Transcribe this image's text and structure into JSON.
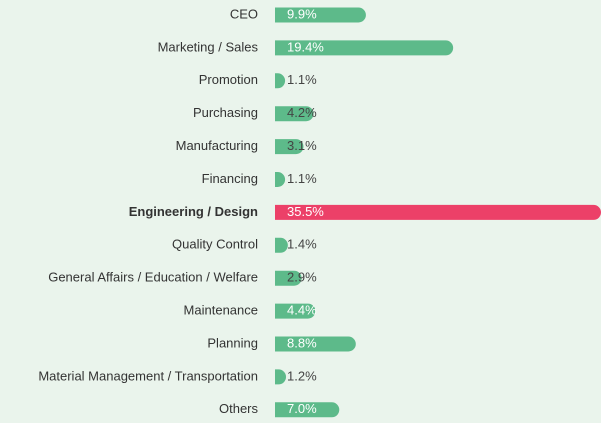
{
  "chart_data": {
    "type": "hbar",
    "categories": [
      "CEO",
      "Marketing / Sales",
      "Promotion",
      "Purchasing",
      "Manufacturing",
      "Financing",
      "Engineering / Design",
      "Quality Control",
      "General Affairs / Education / Welfare",
      "Maintenance",
      "Planning",
      "Material Management / Transportation",
      "Others"
    ],
    "values": [
      9.9,
      19.4,
      1.1,
      4.2,
      3.1,
      1.1,
      35.5,
      1.4,
      2.9,
      4.4,
      8.8,
      1.2,
      7.0
    ],
    "value_labels": [
      "9.9%",
      "19.4%",
      "1.1%",
      "4.2%",
      "3.1%",
      "1.1%",
      "35.5%",
      "1.4%",
      "2.9%",
      "4.4%",
      "8.8%",
      "1.2%",
      "7.0%"
    ],
    "color": "#5dba8a",
    "highlight_color": "#ec4068",
    "highlight_index": 6
  }
}
